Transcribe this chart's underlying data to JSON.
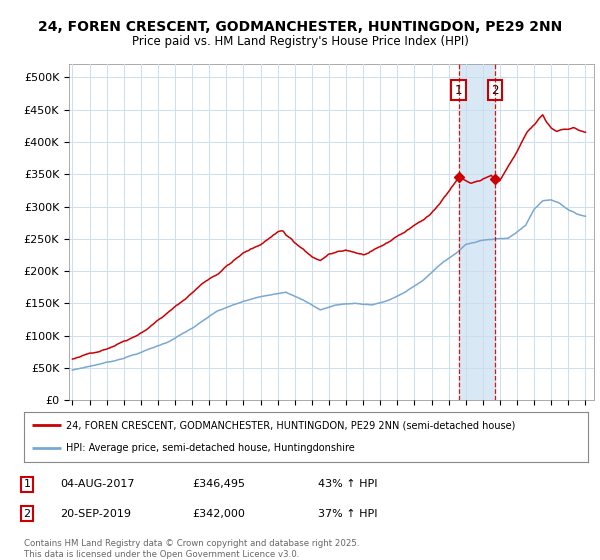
{
  "title_line1": "24, FOREN CRESCENT, GODMANCHESTER, HUNTINGDON, PE29 2NN",
  "title_line2": "Price paid vs. HM Land Registry's House Price Index (HPI)",
  "ylim": [
    0,
    520000
  ],
  "yticks": [
    0,
    50000,
    100000,
    150000,
    200000,
    250000,
    300000,
    350000,
    400000,
    450000,
    500000
  ],
  "ytick_labels": [
    "£0",
    "£50K",
    "£100K",
    "£150K",
    "£200K",
    "£250K",
    "£300K",
    "£350K",
    "£400K",
    "£450K",
    "£500K"
  ],
  "red_color": "#cc0000",
  "blue_color": "#7aa8d2",
  "shade_color": "#d8e8f5",
  "marker1_date": 2017.58,
  "marker1_price": 346495,
  "marker2_date": 2019.72,
  "marker2_price": 342000,
  "legend_label1": "24, FOREN CRESCENT, GODMANCHESTER, HUNTINGDON, PE29 2NN (semi-detached house)",
  "legend_label2": "HPI: Average price, semi-detached house, Huntingdonshire",
  "annotation1_date": "04-AUG-2017",
  "annotation1_price": "£346,495",
  "annotation1_hpi": "43% ↑ HPI",
  "annotation2_date": "20-SEP-2019",
  "annotation2_price": "£342,000",
  "annotation2_hpi": "37% ↑ HPI",
  "footer": "Contains HM Land Registry data © Crown copyright and database right 2025.\nThis data is licensed under the Open Government Licence v3.0.",
  "background_color": "#ffffff",
  "grid_color": "#ccddee"
}
